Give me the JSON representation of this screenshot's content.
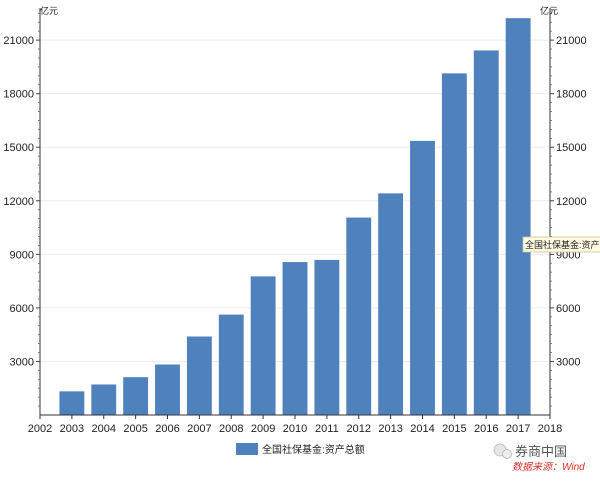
{
  "chart_data": {
    "type": "bar",
    "unit_left": "亿元",
    "unit_right": "亿元",
    "categories": [
      "2003",
      "2004",
      "2005",
      "2006",
      "2007",
      "2008",
      "2009",
      "2010",
      "2011",
      "2012",
      "2013",
      "2014",
      "2015",
      "2016",
      "2017"
    ],
    "series": [
      {
        "name": "全国社保基金:资产总额",
        "color": "#4f81bd",
        "values": [
          1325,
          1711,
          2118,
          2828,
          4397,
          5624,
          7766,
          8567,
          8688,
          11060,
          12416,
          15356,
          19138,
          20423,
          22231
        ]
      }
    ],
    "xlim": [
      2002,
      2018
    ],
    "x_ticks": [
      "2002",
      "2003",
      "2004",
      "2005",
      "2006",
      "2007",
      "2008",
      "2009",
      "2010",
      "2011",
      "2012",
      "2013",
      "2014",
      "2015",
      "2016",
      "2017",
      "2018"
    ],
    "ylim": [
      0,
      22800
    ],
    "y_ticks": [
      3000,
      6000,
      9000,
      12000,
      15000,
      18000,
      21000
    ],
    "legend": "bottom-center",
    "tooltip_label": "全国社保基金:资产总"
  },
  "watermark": {
    "brand": "券商中国",
    "source": "数据来源：Wind"
  }
}
